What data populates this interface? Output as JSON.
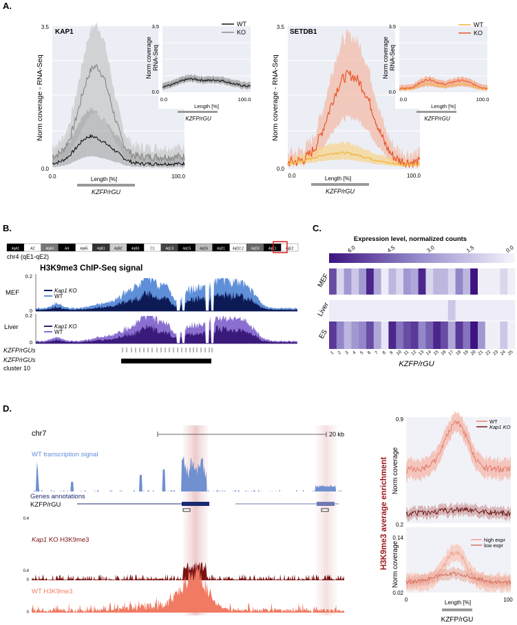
{
  "panels": {
    "A": "A.",
    "B": "B.",
    "C": "C.",
    "D": "D."
  },
  "panelA": {
    "kap1": {
      "title": "KAP1",
      "ylabel": "Norm coverage - RNA-Seq",
      "ytick_top": "3.5",
      "ytick_bottom": "0.0",
      "xtick_left": "0.0",
      "xtick_right": "100.0",
      "xlabel": "Length [%]",
      "bar_label": "KZFP/rGU",
      "inset": {
        "ylabel_1": "Norm coverage",
        "ylabel_2": "RNA-Seq",
        "ytick_top": "3.5",
        "ytick_bottom": "0.0",
        "xtick_left": "0.0",
        "xtick_right": "100.0",
        "xlabel": "Length [%]",
        "bar_label": "KZFP/rGU",
        "legend": [
          "WT",
          "KO"
        ]
      }
    },
    "setdb1": {
      "title": "SETDB1",
      "ylabel": "Norm coverage - RNA-Seq",
      "ytick_top": "3.5",
      "ytick_bottom": "0.0",
      "xtick_left": "0.0",
      "xtick_right": "100.0",
      "xlabel": "Length [%]",
      "bar_label": "KZFP/rGU",
      "inset": {
        "ylabel_1": "Norm coverage",
        "ylabel_2": "RNA-Seq",
        "ytick_top": "3.5",
        "ytick_bottom": "0.0",
        "xtick_left": "0.0",
        "xtick_right": "100.0",
        "xlabel": "Length [%]",
        "bar_label": "KZFP/rGU",
        "legend": [
          "WT",
          "KO"
        ]
      }
    }
  },
  "panelB": {
    "chrom_label": "chr4 (qE1-qE2)",
    "bands": [
      "4qA1",
      "A2",
      "4qA3",
      "A4",
      "4qA5",
      "4qB1",
      "4qB2",
      "4qB3",
      "C1",
      "4qC3",
      "4qC5",
      "4qC6",
      "4qD1",
      "4qD2.2",
      "4qD3",
      "4qE1",
      "4qE2"
    ],
    "title": "H3K9me3 ChIP-Seq signal",
    "mef": {
      "label": "MEF",
      "ytick": "0.2",
      "ytick0": "0",
      "legend": [
        "Kap1 KO",
        "WT"
      ]
    },
    "liver": {
      "label": "Liver",
      "ytick": "0.2",
      "ytick0": "0",
      "legend": [
        "Kap1 KO",
        "WT"
      ]
    },
    "track1": "KZFP/rGUs",
    "track2_1": "KZFP/rGUs",
    "track2_2": "cluster 10"
  },
  "panelC": {
    "title": "Expression level, normalized counts",
    "scale_ticks": [
      "6.0",
      "4.5",
      "3.0",
      "1.5",
      "0.0"
    ],
    "rows": [
      "MEF",
      "Liver",
      "ES"
    ],
    "xlabel": "KZFP/rGU",
    "columns": [
      "1",
      "2",
      "3",
      "4",
      "5",
      "6",
      "7",
      "8",
      "9",
      "10",
      "11",
      "12",
      "13",
      "14",
      "15",
      "16",
      "17",
      "18",
      "19",
      "20",
      "21",
      "22",
      "23",
      "24",
      "25"
    ],
    "values": {
      "MEF": [
        5.0,
        1.0,
        3.0,
        1.5,
        3.0,
        6.0,
        2.5,
        0.3,
        2.0,
        1.0,
        3.0,
        2.5,
        6.0,
        1.0,
        2.0,
        2.0,
        1.0,
        3.5,
        2.0,
        6.5,
        0.2,
        0.2,
        0.2,
        1.0,
        0.2
      ],
      "Liver": [
        0.3,
        0.3,
        0.3,
        0.3,
        0.3,
        0.3,
        0.3,
        0.3,
        0.3,
        0.3,
        0.3,
        0.3,
        0.3,
        0.3,
        0.3,
        0.3,
        1.5,
        0.3,
        0.3,
        0.3,
        0.3,
        0.3,
        0.3,
        0.3,
        0.3
      ],
      "ES": [
        5.5,
        3.5,
        2.0,
        3.0,
        3.5,
        5.0,
        2.5,
        0.5,
        6.0,
        4.0,
        5.0,
        5.5,
        3.5,
        4.5,
        6.0,
        5.0,
        2.5,
        5.5,
        4.0,
        6.5,
        3.0,
        0.2,
        0.2,
        1.5,
        0.2
      ]
    }
  },
  "panelD": {
    "chrom": "chr7",
    "scale": "20 kb",
    "wt_tx": "WT transcription signal",
    "genes": "Genes annotations",
    "kzfp": "KZFP/rGU",
    "ko_label_1": "Kap1",
    "ko_label_2": " KO H3K9me3",
    "wt_h3": "WT H3K9me3",
    "tick04a": "0.4",
    "tick0a": "0",
    "tick04b": "0.4",
    "tick0b": "0",
    "side_ylabel": "H3K9me3 average enrichment",
    "top": {
      "ylabel": "Norm coverage",
      "ytick_top": "0.9",
      "ytick_bottom": "0.2",
      "legend_1": "WT",
      "legend_2": "Kap1 KO"
    },
    "bottom": {
      "ylabel": "Norm coverage",
      "ytick_top": "0.14",
      "ytick_bottom": "0.02",
      "legend_1": "high expr",
      "legend_2": "low expr",
      "xtick_left": "0",
      "xtick_right": "100",
      "xlabel": "Length [%]",
      "bar_label": "KZFP/rGU"
    }
  },
  "colors": {
    "wt_gray": "#111111",
    "ko_gray": "#8a8a8a",
    "wt_orange": "#f0b43c",
    "ko_orange": "#e8552a",
    "navy": "#0c1a55",
    "light_blue": "#5f8fd8",
    "purple_dark": "#3a1a7a",
    "purple_light": "#8a6fd0",
    "heat_high": "#3d1380",
    "heat_low": "#f6f5fb",
    "dark_red": "#7a1212",
    "salmon": "#f07a62"
  }
}
